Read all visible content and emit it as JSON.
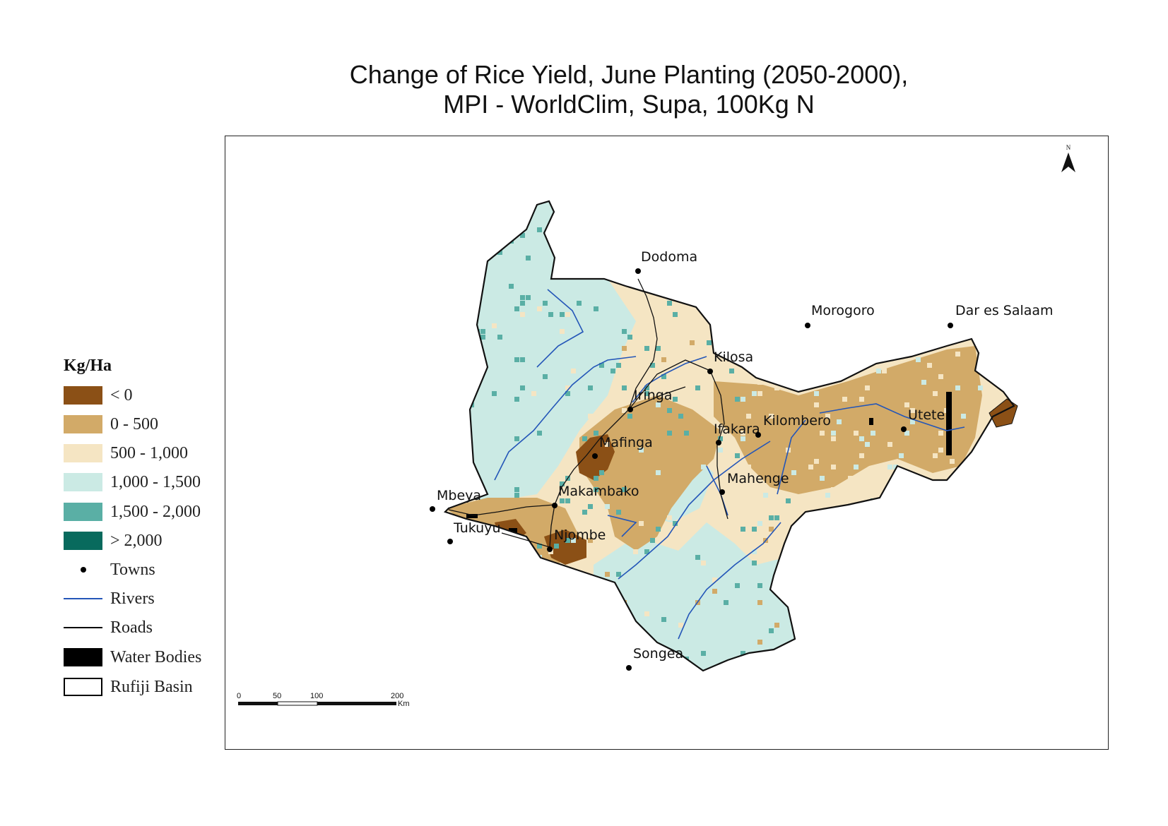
{
  "title": {
    "line1": "Change of Rice Yield, June Planting (2050-2000),",
    "line2": "MPI - WorldClim, Supa, 100Kg N"
  },
  "legend": {
    "title": "Kg/Ha",
    "items": [
      {
        "label": "< 0",
        "color": "#8b5016",
        "kind": "fill"
      },
      {
        "label": "0 - 500",
        "color": "#d2aa68",
        "kind": "fill"
      },
      {
        "label": "500 - 1,000",
        "color": "#f5e5c3",
        "kind": "fill"
      },
      {
        "label": "1,000 - 1,500",
        "color": "#cbeae4",
        "kind": "fill"
      },
      {
        "label": "1,500 - 2,000",
        "color": "#5aafa5",
        "kind": "fill"
      },
      {
        "label": "> 2,000",
        "color": "#086a5d",
        "kind": "fill"
      },
      {
        "label": "Towns",
        "color": "#000000",
        "kind": "point"
      },
      {
        "label": "Rivers",
        "color": "#2456b8",
        "kind": "line"
      },
      {
        "label": "Roads",
        "color": "#000000",
        "kind": "line"
      },
      {
        "label": "Water Bodies",
        "color": "#000000",
        "kind": "fill"
      },
      {
        "label": "Rufiji Basin",
        "color": "#000000",
        "kind": "outline"
      }
    ]
  },
  "towns": [
    {
      "name": "Dodoma"
    },
    {
      "name": "Morogoro"
    },
    {
      "name": "Dar es Salaam"
    },
    {
      "name": "Kilosa"
    },
    {
      "name": "Iringa"
    },
    {
      "name": "Ifakara"
    },
    {
      "name": "Kilombero"
    },
    {
      "name": "Utete"
    },
    {
      "name": "Mafinga"
    },
    {
      "name": "Mahenge"
    },
    {
      "name": "Makambako"
    },
    {
      "name": "Mbeya"
    },
    {
      "name": "Tukuyu"
    },
    {
      "name": "Njombe"
    },
    {
      "name": "Songea"
    }
  ],
  "north_arrow": {
    "label": "N"
  },
  "scale_bar": {
    "ticks": [
      "0",
      "50",
      "100",
      "200"
    ],
    "unit": "Km"
  }
}
